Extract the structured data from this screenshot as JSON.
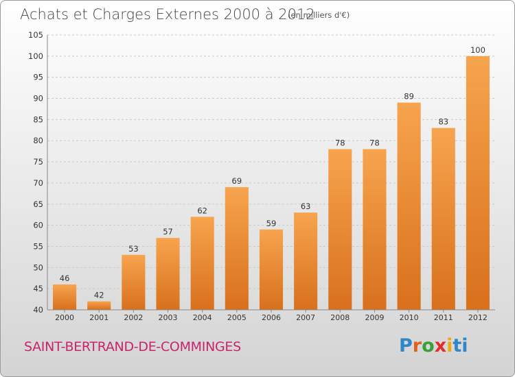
{
  "chart_data": {
    "type": "bar",
    "title": "Achats et Charges Externes 2000 à 2012",
    "subtitle": "(en milliers d'€)",
    "categories": [
      "2000",
      "2001",
      "2002",
      "2003",
      "2004",
      "2005",
      "2006",
      "2007",
      "2008",
      "2009",
      "2010",
      "2011",
      "2012"
    ],
    "values": [
      46,
      42,
      53,
      57,
      62,
      69,
      59,
      63,
      78,
      78,
      89,
      83,
      100
    ],
    "ylim": [
      40,
      105
    ],
    "yticks": [
      40,
      45,
      50,
      55,
      60,
      65,
      70,
      75,
      80,
      85,
      90,
      95,
      100,
      105
    ],
    "grid": true,
    "bar_color_top": "#f7a44e",
    "bar_color_bottom": "#d8701c"
  },
  "footer": {
    "place": "SAINT-BERTRAND-DE-COMMINGES",
    "logo_letters": [
      "P",
      "r",
      "o",
      "x",
      "i",
      "t",
      "i"
    ]
  }
}
